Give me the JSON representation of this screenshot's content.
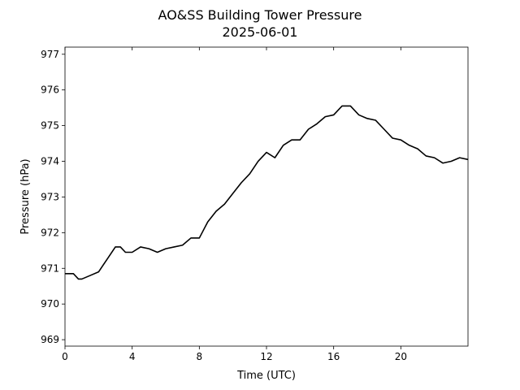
{
  "chart_data": {
    "type": "line",
    "title": "AO&SS Building Tower Pressure",
    "subtitle": "2025-06-01",
    "x_label": "Time (UTC)",
    "y_label": "Pressure (hPa)",
    "x": [
      0,
      0.5,
      0.8,
      1,
      1.5,
      2,
      2.5,
      3,
      3.3,
      3.6,
      4,
      4.5,
      5,
      5.5,
      6,
      6.5,
      7,
      7.5,
      8,
      8.5,
      9,
      9.5,
      10,
      10.5,
      11,
      11.5,
      12,
      12.5,
      13,
      13.5,
      14,
      14.5,
      15,
      15.5,
      16,
      16.5,
      17,
      17.5,
      18,
      18.5,
      19,
      19.5,
      20,
      20.5,
      21,
      21.5,
      22,
      22.5,
      23,
      23.5,
      24
    ],
    "series": [
      {
        "name": "Pressure",
        "color": "#000000",
        "values": [
          970.85,
          970.85,
          970.7,
          970.7,
          970.8,
          970.9,
          971.25,
          971.6,
          971.6,
          971.45,
          971.45,
          971.6,
          971.55,
          971.45,
          971.55,
          971.6,
          971.65,
          971.85,
          971.85,
          972.3,
          972.6,
          972.8,
          973.1,
          973.4,
          973.65,
          974.0,
          974.25,
          974.1,
          974.45,
          974.6,
          974.6,
          974.9,
          975.05,
          975.25,
          975.3,
          975.55,
          975.55,
          975.3,
          975.2,
          975.15,
          974.9,
          974.65,
          974.6,
          974.45,
          974.35,
          974.15,
          974.1,
          973.95,
          974.0,
          974.1,
          974.05
        ]
      }
    ],
    "xlim": [
      0,
      24
    ],
    "xticks": [
      0,
      4,
      8,
      12,
      16,
      20
    ],
    "ylim": [
      968.82,
      977.2
    ],
    "yticks": [
      969,
      970,
      971,
      972,
      973,
      974,
      975,
      976,
      977
    ],
    "grid": false
  }
}
